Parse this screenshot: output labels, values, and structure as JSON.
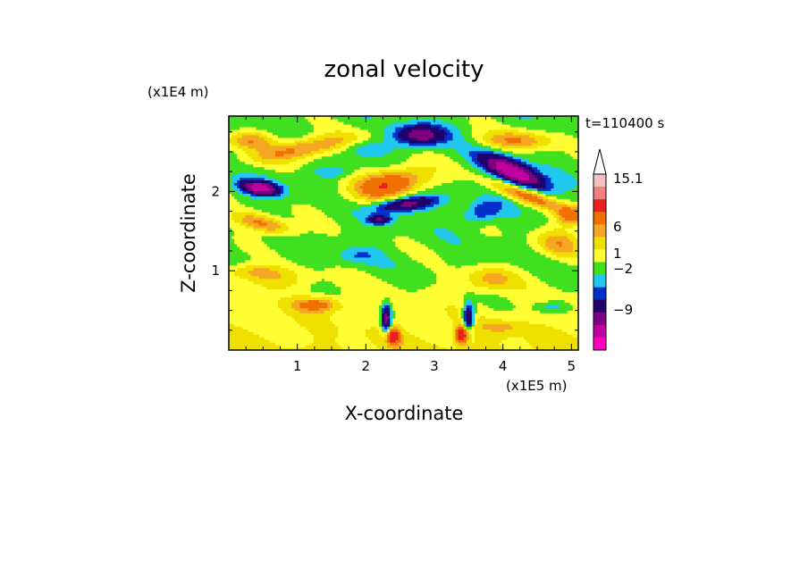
{
  "chart_data": {
    "type": "heatmap",
    "title": "zonal velocity",
    "xlabel": "X-coordinate",
    "ylabel": "Z-coordinate",
    "x_units": "(x1E5 m)",
    "y_units": "(x1E4 m)",
    "time_label": "t=110400 s",
    "xlim": [
      0,
      5.1
    ],
    "ylim": [
      0,
      2.95
    ],
    "x_ticks": [
      1,
      2,
      3,
      4,
      5
    ],
    "x_tick_labels": [
      "1",
      "2",
      "3",
      "4",
      "5"
    ],
    "y_ticks": [
      1,
      2
    ],
    "y_tick_labels": [
      "1",
      "2"
    ],
    "colorbar": {
      "labels": [
        "15.1",
        "6",
        "1",
        "−2",
        "−9"
      ],
      "colors_top_to_bottom": [
        "#f5bfbf",
        "#ee8080",
        "#e82020",
        "#f07000",
        "#f5a623",
        "#f0e000",
        "#ffff33",
        "#40e020",
        "#20c8f0",
        "#0030c8",
        "#20006a",
        "#800080",
        "#c000a0",
        "#ff00c0"
      ],
      "extend_max": true
    },
    "color_scale": {
      "levels": [
        -15,
        -9,
        -6,
        -4,
        -2,
        -1,
        0,
        1,
        2,
        3,
        4,
        6,
        10,
        15.1
      ],
      "colors": [
        "#ff00c0",
        "#c000a0",
        "#800080",
        "#20006a",
        "#0030c8",
        "#20c8f0",
        "#40e020",
        "#ffff33",
        "#f0e000",
        "#f5a623",
        "#f07000",
        "#e82020",
        "#ee8080",
        "#f5bfbf"
      ]
    },
    "grid": false,
    "legend": "right"
  }
}
